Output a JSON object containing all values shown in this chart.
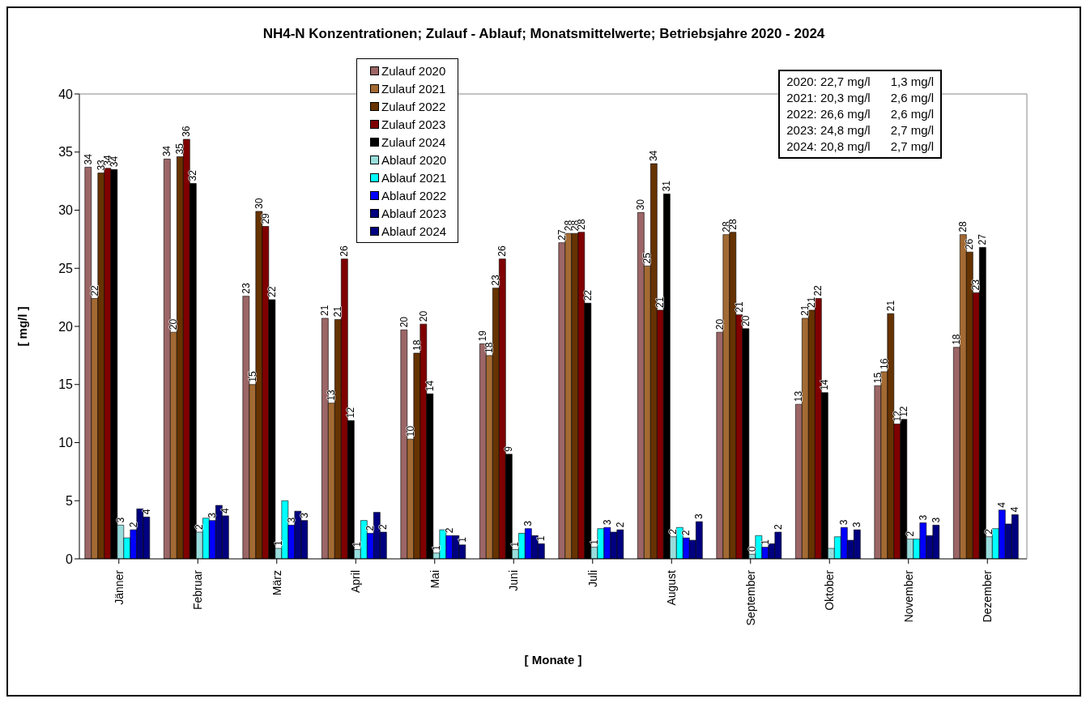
{
  "chart_data": {
    "type": "bar",
    "title": "NH4-N Konzentrationen;  Zulauf - Ablauf;  Monatsmittelwerte;  Betriebsjahre 2020 - 2024",
    "xlabel": "[ Monate ]",
    "ylabel": "[ mg/l ]",
    "categories": [
      "Jänner",
      "Februar",
      "März",
      "April",
      "Mai",
      "Juni",
      "Juli",
      "August",
      "September",
      "Oktober",
      "November",
      "Dezember"
    ],
    "series": [
      {
        "name": "Zulauf 2020",
        "color": "#9c6666",
        "values": [
          33.7,
          34.4,
          22.6,
          20.7,
          19.7,
          18.5,
          27.2,
          29.8,
          19.5,
          13.3,
          14.9,
          18.2
        ],
        "value_labels": [
          "34",
          "34",
          "23",
          "21",
          "20",
          "19",
          "27",
          "30",
          "20",
          "13",
          "15",
          "18"
        ]
      },
      {
        "name": "Zulauf 2021",
        "color": "#a36a33",
        "values": [
          22.4,
          19.5,
          15.0,
          13.4,
          10.3,
          17.5,
          28.0,
          25.2,
          27.9,
          20.7,
          16.1,
          27.9
        ],
        "value_labels": [
          "22",
          "20",
          "15",
          "13",
          "10",
          "18",
          "28",
          "25",
          "28",
          "21",
          "16",
          "28"
        ]
      },
      {
        "name": "Zulauf 2022",
        "color": "#663300",
        "values": [
          33.2,
          34.6,
          29.9,
          20.6,
          17.7,
          23.3,
          28.0,
          34.0,
          28.1,
          21.4,
          21.1,
          26.4
        ],
        "value_labels": [
          "33",
          "35",
          "30",
          "21",
          "18",
          "23",
          "28",
          "34",
          "28",
          "21",
          "21",
          "26"
        ]
      },
      {
        "name": "Zulauf 2023",
        "color": "#800000",
        "values": [
          33.6,
          36.1,
          28.6,
          25.8,
          20.2,
          25.8,
          28.1,
          21.4,
          21.0,
          22.4,
          11.6,
          22.9
        ],
        "value_labels": [
          "34",
          "36",
          "29",
          "26",
          "20",
          "26",
          "28",
          "21",
          "21",
          "22",
          "12",
          "23"
        ]
      },
      {
        "name": "Zulauf 2024",
        "color": "#000000",
        "values": [
          33.5,
          32.3,
          22.3,
          11.9,
          14.2,
          9.0,
          22.0,
          31.4,
          19.8,
          14.3,
          12.0,
          26.8
        ],
        "value_labels": [
          "34",
          "32",
          "22",
          "12",
          "14",
          "9",
          "22",
          "31",
          "20",
          "14",
          "12",
          "27"
        ]
      },
      {
        "name": "Ablauf 2020",
        "color": "#99dddd",
        "values": [
          2.9,
          2.3,
          0.9,
          0.8,
          0.5,
          0.8,
          1.0,
          1.9,
          0.4,
          0.9,
          1.7,
          1.9
        ],
        "value_labels": [
          "3",
          "2",
          "1",
          "1",
          "1",
          "1",
          "1",
          "2",
          "0",
          null,
          "2",
          "2"
        ]
      },
      {
        "name": "Ablauf 2021",
        "color": "#00ffff",
        "values": [
          1.8,
          3.5,
          5.0,
          3.3,
          2.5,
          2.2,
          2.6,
          2.7,
          2.0,
          1.9,
          1.7,
          2.6
        ],
        "value_labels": [
          null,
          null,
          null,
          null,
          null,
          null,
          null,
          null,
          null,
          null,
          null,
          null
        ]
      },
      {
        "name": "Ablauf 2022",
        "color": "#0000ff",
        "values": [
          2.5,
          3.3,
          2.9,
          2.2,
          2.0,
          2.6,
          2.7,
          1.8,
          1.0,
          2.7,
          3.1,
          4.2
        ],
        "value_labels": [
          "2",
          "3",
          "3",
          "2",
          "2",
          "3",
          "3",
          "2",
          "1",
          "3",
          "3",
          "4"
        ]
      },
      {
        "name": "Ablauf 2023",
        "color": "#000080",
        "values": [
          4.3,
          4.6,
          4.1,
          4.0,
          2.0,
          2.0,
          2.3,
          1.6,
          1.3,
          1.6,
          2.0,
          3.0
        ],
        "value_labels": [
          null,
          null,
          null,
          null,
          null,
          null,
          null,
          null,
          null,
          null,
          null,
          null
        ]
      },
      {
        "name": "Ablauf 2024",
        "color": "#000080",
        "values": [
          3.6,
          3.7,
          3.3,
          2.3,
          1.2,
          1.3,
          2.5,
          3.2,
          2.3,
          2.5,
          2.9,
          3.8
        ],
        "value_labels": [
          "4",
          "4",
          "3",
          "2",
          "1",
          "1",
          "2",
          "3",
          "2",
          "3",
          "3",
          "4"
        ]
      }
    ],
    "ylim": [
      0,
      40
    ],
    "yticks": [
      0,
      5,
      10,
      15,
      20,
      25,
      30,
      35,
      40
    ],
    "legend": "top",
    "annotations": [
      "2020: 22,7 mg/l      1,3 mg/l",
      "2021: 20,3 mg/l      2,6 mg/l",
      "2022: 26,6 mg/l      2,6 mg/l",
      "2023: 24,8 mg/l      2,7 mg/l",
      "2024: 20,8 mg/l      2,7 mg/l"
    ]
  }
}
